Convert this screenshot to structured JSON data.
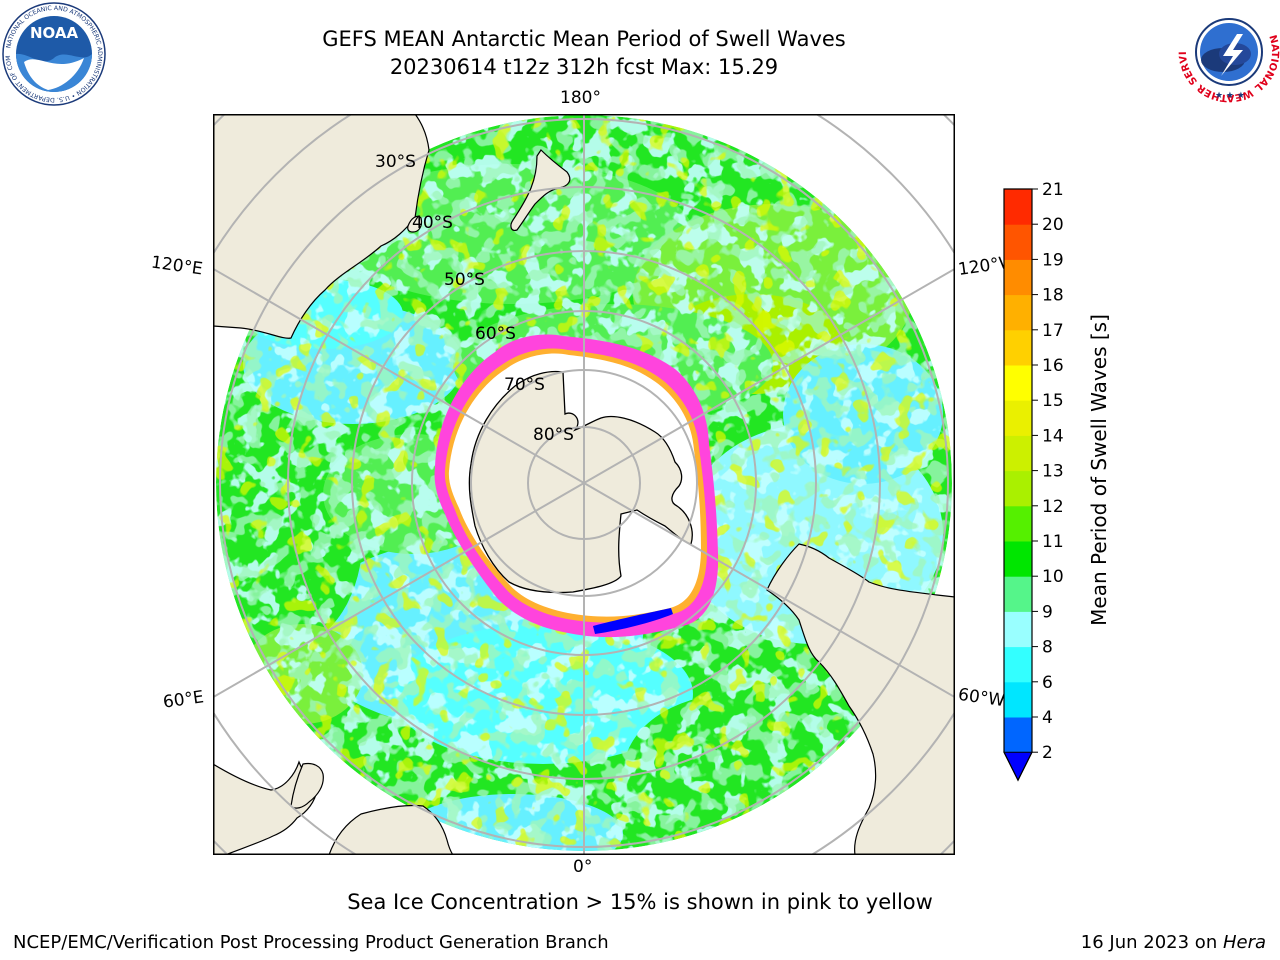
{
  "title": {
    "line1": "GEFS MEAN Antarctic Mean Period of Swell Waves",
    "line2": "20230614 t12z 312h fcst   Max: 15.29"
  },
  "logos": {
    "noaa": {
      "text": "NOAA",
      "ring_text": "NATIONAL OCEANIC AND ATMOSPHERIC ADMINISTRATION • U.S. DEPARTMENT OF COMMERCE"
    },
    "nws": {
      "ring_text": "NATIONAL WEATHER SERVICE"
    }
  },
  "map": {
    "projection": "south-polar-stereographic",
    "longitude_labels": {
      "top": "180°",
      "bottom": "0°",
      "upper_left": "120°E",
      "upper_right": "120°W",
      "lower_left": "60°E",
      "lower_right": "60°W"
    },
    "latitude_labels": [
      "30°S",
      "40°S",
      "50°S",
      "60°S",
      "70°S",
      "80°S"
    ],
    "colors": {
      "land": "#efebdc",
      "ice_free_white": "#ffffff",
      "ice_edge_pink": "#ff44dd",
      "ice_edge_orange": "#ffb030",
      "grid": "#b3b3b3"
    }
  },
  "colorbar": {
    "label": "Mean Period of Swell Waves [s]",
    "ticks": [
      "2",
      "4",
      "6",
      "8",
      "9",
      "10",
      "11",
      "12",
      "13",
      "14",
      "15",
      "16",
      "17",
      "18",
      "19",
      "20",
      "21"
    ],
    "colors": [
      "#0066ff",
      "#00e6ff",
      "#33ffff",
      "#99ffff",
      "#55f58a",
      "#00e600",
      "#55f000",
      "#aaf000",
      "#ccf000",
      "#eaf000",
      "#ffff00",
      "#ffd000",
      "#ffb000",
      "#ff8c00",
      "#ff5500",
      "#ff2a00"
    ],
    "under_color": "#0000ff"
  },
  "caption": "Sea Ice Concentration > 15% is shown in pink to yellow",
  "footer": {
    "left": "NCEP/EMC/Verification Post Processing Product Generation Branch",
    "right_prefix": "16 Jun 2023 on ",
    "right_host": "Hera"
  }
}
